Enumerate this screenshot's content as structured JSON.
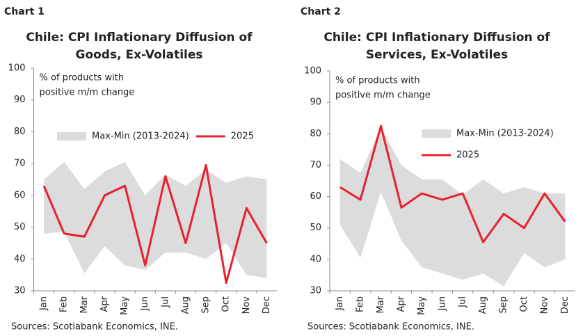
{
  "chart_data": [
    {
      "type": "band-line",
      "label": "Chart 1",
      "title": [
        "Chile: CPI Inflationary Diffusion of",
        "Goods, Ex-Volatiles"
      ],
      "annotation": [
        "% of products with",
        "positive m/m change"
      ],
      "source": "Sources: Scotiabank Economics, INE.",
      "categories": [
        "Jan",
        "Feb",
        "Mar",
        "Apr",
        "May",
        "Jun",
        "Jul",
        "Aug",
        "Sep",
        "Oct",
        "Nov",
        "Dec"
      ],
      "ylim": [
        30,
        100
      ],
      "yticks": [
        30,
        40,
        50,
        60,
        70,
        80,
        90,
        100
      ],
      "legend_layout": "row",
      "series": [
        {
          "name": "Max-Min (2013-2024)",
          "color": "#dcdcdc",
          "high": [
            65,
            70.5,
            62,
            67.5,
            70.5,
            60,
            66.5,
            63,
            68,
            64,
            66,
            65
          ],
          "low": [
            48,
            48.5,
            35.5,
            44,
            38,
            36.5,
            42,
            42,
            40,
            45,
            35,
            34
          ]
        },
        {
          "name": "2025",
          "color": "#e8202f",
          "values": [
            63,
            48,
            47,
            60,
            63,
            38,
            66,
            45,
            69.5,
            32.5,
            56,
            45
          ]
        }
      ]
    },
    {
      "type": "band-line",
      "label": "Chart 2",
      "title": [
        "Chile: CPI Inflationary Diffusion of",
        "Services, Ex-Volatiles"
      ],
      "annotation": [
        "% of products with",
        "positive m/m change"
      ],
      "source": "Sources: Scotiabank Economics, INE.",
      "categories": [
        "Jan",
        "Feb",
        "Mar",
        "Apr",
        "May",
        "Jun",
        "Jul",
        "Aug",
        "Sep",
        "Oct",
        "Nov",
        "Dec"
      ],
      "ylim": [
        30,
        100
      ],
      "yticks": [
        30,
        40,
        50,
        60,
        70,
        80,
        90,
        100
      ],
      "legend_layout": "column",
      "series": [
        {
          "name": "Max-Min (2013-2024)",
          "color": "#dcdcdc",
          "high": [
            72,
            67.5,
            82,
            70,
            65.5,
            65.5,
            60.5,
            65.5,
            61,
            63,
            61,
            61
          ],
          "low": [
            51,
            40.5,
            61.5,
            46,
            37.5,
            35.5,
            33.5,
            35.5,
            31.5,
            42,
            37.5,
            40
          ]
        },
        {
          "name": "2025",
          "color": "#e8202f",
          "values": [
            63,
            59,
            82.5,
            56.5,
            61,
            59,
            61,
            45.5,
            54.5,
            50,
            61,
            52
          ]
        }
      ]
    }
  ]
}
